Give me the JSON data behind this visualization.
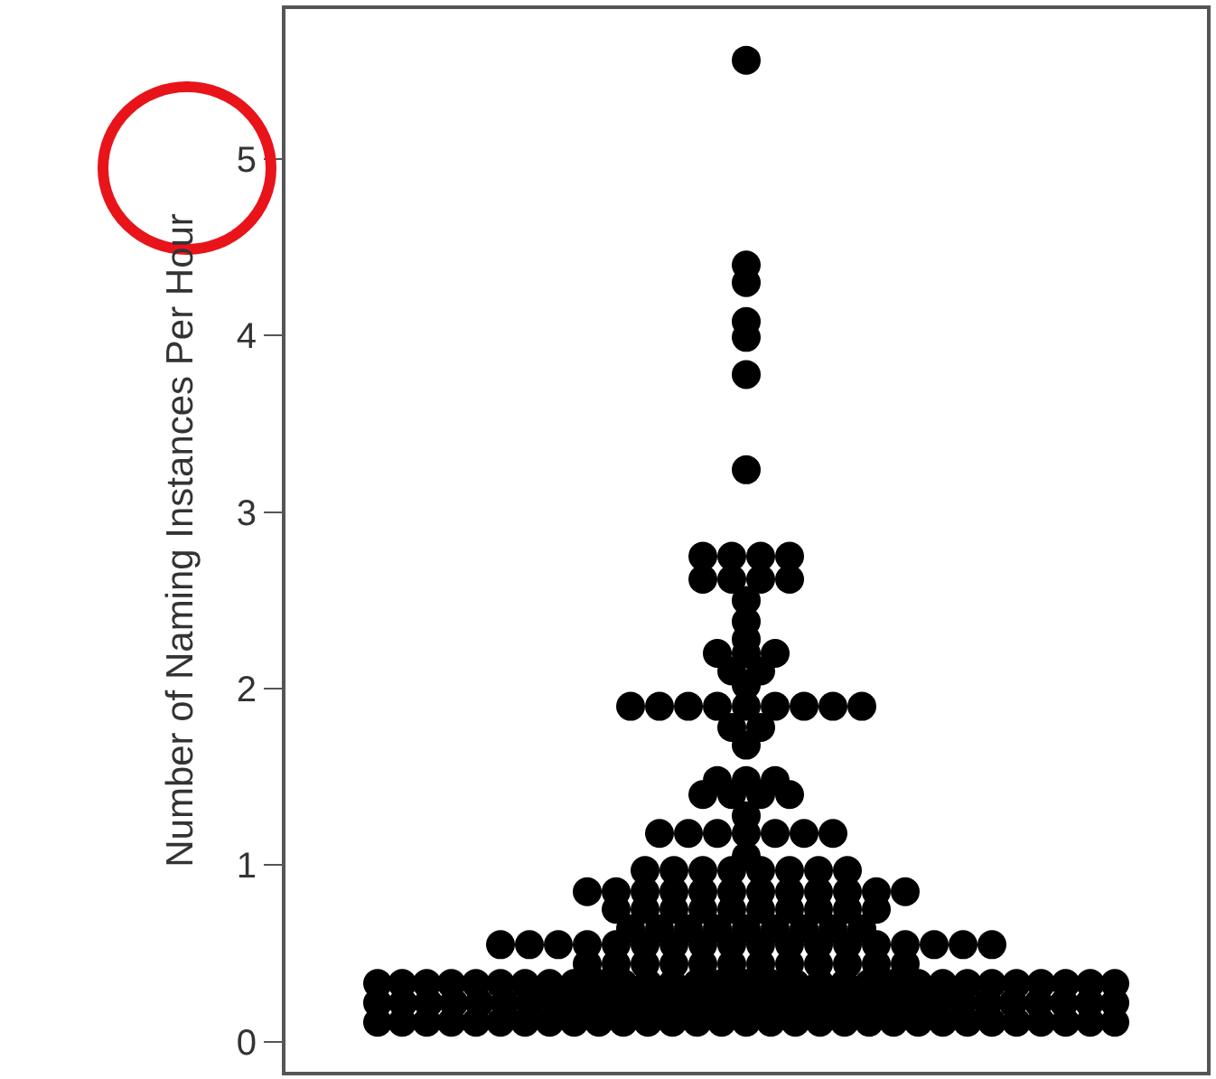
{
  "chart_data": {
    "type": "scatter",
    "ylabel": "Number of Naming Instances Per Hour",
    "marker": "circle",
    "tick_labels": "y",
    "categories": [
      null
    ],
    "ylim": [
      -0.17,
      5.85
    ],
    "yticks": [
      0,
      1,
      2,
      3,
      4,
      5
    ],
    "series": [
      {
        "color": "#000000",
        "x": [
          null,
          null,
          null,
          null,
          null,
          null,
          null,
          null,
          null,
          null,
          null,
          null,
          null,
          null,
          null,
          null,
          null,
          null,
          null,
          null,
          null,
          null,
          null,
          null,
          null,
          null,
          null,
          null,
          null,
          null,
          null,
          null,
          null,
          null,
          null,
          null,
          null,
          null,
          null,
          null,
          null,
          null,
          null,
          null,
          null,
          null,
          null,
          null,
          null,
          null,
          null,
          null,
          null,
          null,
          null,
          null,
          null,
          null,
          null,
          null,
          null,
          null,
          null,
          null,
          null,
          null,
          null,
          null,
          null,
          null,
          null,
          null,
          null,
          null,
          null,
          null,
          null,
          null,
          null,
          null,
          null,
          null,
          null,
          null,
          null,
          null,
          null,
          null,
          null,
          null,
          null,
          null,
          null,
          null,
          null,
          null,
          null,
          null,
          null,
          null,
          null,
          null,
          null,
          null,
          null,
          null,
          null,
          null,
          null,
          null,
          null,
          null,
          null,
          null,
          null,
          null,
          null,
          null,
          null,
          null,
          null,
          null,
          null,
          null,
          null,
          null,
          null,
          null,
          null,
          null,
          null,
          null,
          null,
          null,
          null,
          null,
          null,
          null,
          null,
          null,
          null,
          null,
          null,
          null,
          null,
          null,
          null,
          null,
          null,
          null,
          null,
          null,
          null,
          null,
          null,
          null,
          null,
          null,
          null,
          null,
          null,
          null,
          null,
          null,
          null,
          null,
          null,
          null,
          null,
          null,
          null,
          null,
          null,
          null,
          null,
          null,
          null,
          null,
          null,
          null,
          null,
          null,
          null,
          null,
          null,
          null,
          null,
          null,
          null,
          null,
          null,
          null,
          null,
          null,
          null,
          null,
          null,
          null,
          null,
          null,
          null,
          null,
          null,
          null,
          null,
          null,
          null,
          null,
          null,
          null,
          null,
          null,
          null
        ],
        "values": [
          0.11,
          0.11,
          0.11,
          0.11,
          0.11,
          0.11,
          0.11,
          0.11,
          0.11,
          0.11,
          0.11,
          0.11,
          0.11,
          0.11,
          0.11,
          0.11,
          0.11,
          0.11,
          0.11,
          0.11,
          0.11,
          0.11,
          0.11,
          0.11,
          0.11,
          0.11,
          0.11,
          0.11,
          0.11,
          0.11,
          0.11,
          0.22,
          0.22,
          0.22,
          0.22,
          0.22,
          0.22,
          0.22,
          0.22,
          0.22,
          0.22,
          0.22,
          0.22,
          0.22,
          0.22,
          0.22,
          0.22,
          0.22,
          0.22,
          0.22,
          0.22,
          0.22,
          0.22,
          0.22,
          0.22,
          0.22,
          0.22,
          0.22,
          0.22,
          0.22,
          0.22,
          0.33,
          0.33,
          0.33,
          0.33,
          0.33,
          0.33,
          0.33,
          0.33,
          0.33,
          0.33,
          0.33,
          0.33,
          0.33,
          0.33,
          0.33,
          0.33,
          0.33,
          0.33,
          0.33,
          0.33,
          0.33,
          0.33,
          0.33,
          0.33,
          0.33,
          0.33,
          0.33,
          0.33,
          0.33,
          0.33,
          0.33,
          0.44,
          0.44,
          0.44,
          0.44,
          0.44,
          0.44,
          0.44,
          0.44,
          0.44,
          0.44,
          0.44,
          0.44,
          0.55,
          0.55,
          0.55,
          0.55,
          0.55,
          0.55,
          0.55,
          0.55,
          0.55,
          0.55,
          0.55,
          0.55,
          0.55,
          0.55,
          0.55,
          0.55,
          0.55,
          0.55,
          0.64,
          0.64,
          0.64,
          0.64,
          0.64,
          0.64,
          0.64,
          0.64,
          0.64,
          0.75,
          0.75,
          0.75,
          0.75,
          0.75,
          0.75,
          0.75,
          0.75,
          0.75,
          0.75,
          0.85,
          0.85,
          0.85,
          0.85,
          0.85,
          0.85,
          0.85,
          0.85,
          0.85,
          0.85,
          0.85,
          0.85,
          0.97,
          0.97,
          0.97,
          0.97,
          0.97,
          0.97,
          0.97,
          0.97,
          1.05,
          1.18,
          1.18,
          1.18,
          1.18,
          1.18,
          1.18,
          1.18,
          1.28,
          1.4,
          1.4,
          1.4,
          1.4,
          1.48,
          1.48,
          1.48,
          1.68,
          1.78,
          1.78,
          1.9,
          1.9,
          1.9,
          1.9,
          1.9,
          1.9,
          1.9,
          1.9,
          1.9,
          2.02,
          2.1,
          2.1,
          2.2,
          2.2,
          2.2,
          2.28,
          2.38,
          2.5,
          2.62,
          2.62,
          2.62,
          2.62,
          2.75,
          2.75,
          2.75,
          2.75,
          3.24,
          3.78,
          3.99,
          4.08,
          4.3,
          4.4,
          5.56
        ]
      }
    ]
  }
}
